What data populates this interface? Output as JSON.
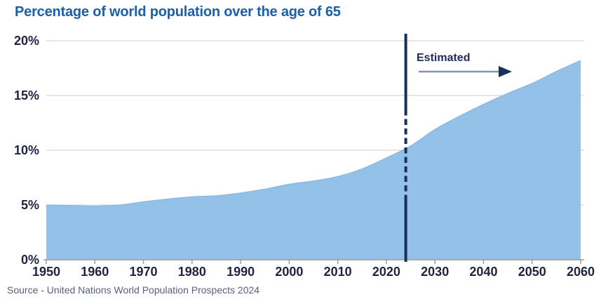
{
  "title": "Percentage of world population over the age of 65",
  "source": "Source - United Nations World Population Prospects 2024",
  "colors": {
    "title_text": "#1d5ea9",
    "area_fill": "#93c1e8",
    "area_edge": "#85b5e3",
    "axis_text": "#1f2340",
    "gridline": "#d8d8d8",
    "axis_line": "#9b9b9b",
    "divider": "#17315f",
    "estimated_text": "#1e2c57",
    "arrow_shaft": "#8a93a8",
    "arrow_head": "#17315f",
    "source_text": "#596179"
  },
  "chart_data": {
    "type": "area",
    "title": "Percentage of world population over the age of 65",
    "x": [
      1950,
      1955,
      1960,
      1965,
      1970,
      1975,
      1980,
      1985,
      1990,
      1995,
      2000,
      2005,
      2010,
      2015,
      2020,
      2025,
      2030,
      2035,
      2040,
      2045,
      2050,
      2055,
      2060
    ],
    "values": [
      5.0,
      4.95,
      4.9,
      5.0,
      5.3,
      5.55,
      5.75,
      5.85,
      6.1,
      6.45,
      6.9,
      7.2,
      7.6,
      8.3,
      9.3,
      10.4,
      11.9,
      13.1,
      14.2,
      15.2,
      16.1,
      17.2,
      18.2
    ],
    "x_ticks": [
      1950,
      1960,
      1970,
      1980,
      1990,
      2000,
      2010,
      2020,
      2030,
      2040,
      2050,
      2060
    ],
    "y_ticks": [
      0,
      5,
      10,
      15,
      20
    ],
    "y_tick_suffix": "%",
    "xlim": [
      1950,
      2060
    ],
    "ylim": [
      0,
      20
    ],
    "grid": "horizontal",
    "legend": "none",
    "xlabel": "",
    "ylabel": "",
    "divider": {
      "x": 2024,
      "label": "Estimated",
      "style": "solid-dashed-solid",
      "arrow": "right"
    }
  }
}
